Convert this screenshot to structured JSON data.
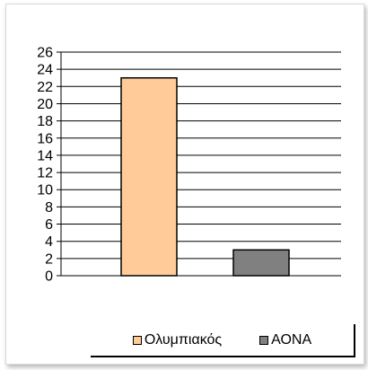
{
  "chart_data": {
    "type": "bar",
    "title": "",
    "xlabel": "",
    "ylabel": "",
    "ylim": [
      0,
      26
    ],
    "yticks": [
      0,
      2,
      4,
      6,
      8,
      10,
      12,
      14,
      16,
      18,
      20,
      22,
      24,
      26
    ],
    "grid": true,
    "legend_position": "bottom",
    "series": [
      {
        "name": "Ολυμπιακός",
        "value": 23,
        "color": "#FFCC99"
      },
      {
        "name": "ΑΟΝΑ",
        "value": 3,
        "color": "#808080"
      }
    ]
  }
}
